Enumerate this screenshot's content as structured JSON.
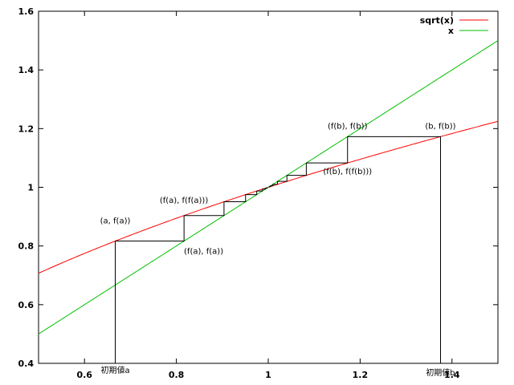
{
  "chart_data": {
    "type": "line",
    "title": "",
    "xlabel": "",
    "ylabel": "",
    "xlim": [
      0.5,
      1.5
    ],
    "ylim": [
      0.4,
      1.6
    ],
    "x_ticks": [
      {
        "value": 0.6,
        "label": "0.6"
      },
      {
        "value": 0.8,
        "label": "0.8"
      },
      {
        "value": 1.0,
        "label": "1"
      },
      {
        "value": 1.2,
        "label": "1.2"
      },
      {
        "value": 1.4,
        "label": "1.4"
      }
    ],
    "y_ticks": [
      {
        "value": 0.4,
        "label": "0.4"
      },
      {
        "value": 0.6,
        "label": "0.6"
      },
      {
        "value": 0.8,
        "label": "0.8"
      },
      {
        "value": 1.0,
        "label": "1"
      },
      {
        "value": 1.2,
        "label": "1.2"
      },
      {
        "value": 1.4,
        "label": "1.4"
      },
      {
        "value": 1.6,
        "label": "1.6"
      }
    ],
    "grid": false,
    "legend_position": "top-right",
    "series": [
      {
        "name": "sqrt(x)",
        "function": "sqrt",
        "color": "#ff0000"
      },
      {
        "name": "x",
        "function": "identity",
        "color": "#00c000"
      }
    ],
    "iterations": [
      {
        "start": 0.667,
        "steps": 8,
        "color": "#000000"
      },
      {
        "start": 1.375,
        "steps": 8,
        "color": "#000000"
      }
    ],
    "annotations": [
      {
        "text": "(a, f(a))",
        "x": 0.667,
        "y": 0.8165,
        "anchor": "middle",
        "dy": -22
      },
      {
        "text": "(f(a), f(f(a)))",
        "x": 0.8165,
        "y": 0.9036,
        "anchor": "middle",
        "dy": -16
      },
      {
        "text": "(f(a), f(a))",
        "x": 0.8165,
        "y": 0.8165,
        "anchor": "start",
        "dy": 16
      },
      {
        "text": "(f(b), f(b))",
        "x": 1.1726,
        "y": 1.1726,
        "anchor": "middle",
        "dy": -10
      },
      {
        "text": "(b, f(b))",
        "x": 1.375,
        "y": 1.1726,
        "anchor": "middle",
        "dy": -10
      },
      {
        "text": "(f(b), f(f(b)))",
        "x": 1.1726,
        "y": 1.0829,
        "anchor": "middle",
        "dy": 14
      },
      {
        "text": "初期値a",
        "x": 0.667,
        "y": 0.4,
        "anchor": "middle",
        "dy": 12
      },
      {
        "text": "初期値b",
        "x": 1.375,
        "y": 0.4,
        "anchor": "middle",
        "dy": 15
      }
    ]
  }
}
